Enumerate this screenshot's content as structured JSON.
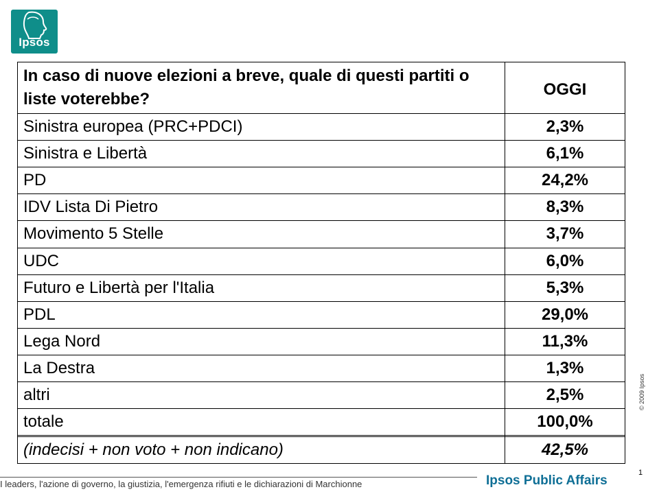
{
  "logo": {
    "text": "Ipsos"
  },
  "table": {
    "question": "In caso di nuove elezioni a breve, quale di questi partiti o liste voterebbe?",
    "column_header": "OGGI",
    "rows": [
      {
        "label": "Sinistra europea (PRC+PDCI)",
        "value": "2,3%"
      },
      {
        "label": "Sinistra e Libertà",
        "value": "6,1%"
      },
      {
        "label": "PD",
        "value": "24,2%"
      },
      {
        "label": "IDV Lista Di Pietro",
        "value": "8,3%"
      },
      {
        "label": "Movimento 5 Stelle",
        "value": "3,7%"
      },
      {
        "label": "UDC",
        "value": "6,0%"
      },
      {
        "label": "Futuro e Libertà per l'Italia",
        "value": "5,3%"
      },
      {
        "label": "PDL",
        "value": "29,0%"
      },
      {
        "label": "Lega Nord",
        "value": "11,3%"
      },
      {
        "label": "La Destra",
        "value": "1,3%"
      },
      {
        "label": "altri",
        "value": "2,5%"
      },
      {
        "label": "totale",
        "value": "100,0%"
      }
    ],
    "note": {
      "label": "(indecisi + non voto + non indicano)",
      "value": "42,5%"
    }
  },
  "copyright": "© 2009 Ipsos",
  "page_number": "1",
  "footer": {
    "text": "I leaders, l'azione di governo, la giustizia, l'emergenza rifiuti e le dichiarazioni di Marchionne",
    "brand": "Ipsos Public Affairs"
  },
  "colors": {
    "logo": "#0f8e8a",
    "brand": "#0f6f96"
  }
}
